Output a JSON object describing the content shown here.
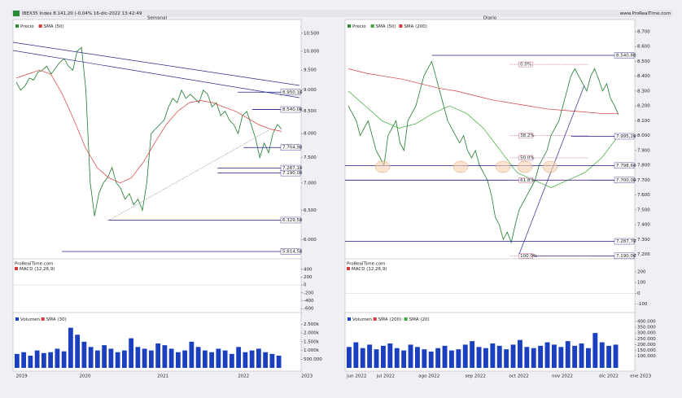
{
  "header": {
    "title": "IBEX35 Index 8.141,20 (-0,04% 16-dic-2022 13:42:49",
    "site": "www.ProRealTime.com"
  },
  "panels": [
    {
      "title": "Semanal",
      "price": {
        "legend": [
          "Precio",
          "SMA (50)"
        ],
        "log": true,
        "ylim": [
          5700,
          10800
        ],
        "yticks": [
          {
            "value": 10500,
            "label": "10.500"
          },
          {
            "value": 10000,
            "label": "10.000"
          },
          {
            "value": 9500,
            "label": "9.500"
          },
          {
            "value": 9000,
            "label": "9.000"
          },
          {
            "value": 8500,
            "label": "8.500"
          },
          {
            "value": 8000,
            "label": "8.000"
          },
          {
            "value": 7500,
            "label": "7.500"
          },
          {
            "value": 7000,
            "label": "7.000"
          },
          {
            "value": 6500,
            "label": "6.500"
          },
          {
            "value": 6000,
            "label": "6.000"
          }
        ],
        "close": [
          9200,
          9000,
          9100,
          9300,
          9250,
          9450,
          9500,
          9600,
          9400,
          9550,
          9700,
          9800,
          9600,
          9500,
          10000,
          10100,
          9000,
          7000,
          6400,
          6800,
          7000,
          7100,
          7300,
          7000,
          6900,
          6700,
          6800,
          6600,
          6700,
          6500,
          7000,
          8000,
          8100,
          8200,
          8300,
          8600,
          8800,
          8700,
          9000,
          8800,
          8900,
          8800,
          8700,
          9000,
          8900,
          8600,
          8700,
          8400,
          8500,
          8300,
          8200,
          8000,
          8400,
          8500,
          8200,
          7900,
          7500,
          7800,
          7600,
          8000,
          8200,
          8100
        ],
        "sma": [
          {
            "name": "SMA (50)",
            "color": "#d63a3a",
            "values": [
              9300,
              9400,
              9500,
              9400,
              8900,
              8300,
              7700,
              7300,
              7100,
              7000,
              7100,
              7400,
              7800,
              8200,
              8500,
              8700,
              8750,
              8700,
              8600,
              8500,
              8350,
              8200,
              8100,
              8050
            ]
          }
        ],
        "levels": [
          {
            "value": 8950.1,
            "label": "8.950,10"
          },
          {
            "value": 8540,
            "label": "8.540,00"
          },
          {
            "value": 7704.9,
            "label": "7.704,90"
          },
          {
            "value": 7287.1,
            "label": "7.287,10"
          },
          {
            "value": 7190,
            "label": "7.190,00"
          },
          {
            "value": 6329.5,
            "label": "6.329,50"
          },
          {
            "value": 5814.5,
            "label": "5.814,50"
          }
        ]
      },
      "macd": {
        "legend": [
          "ProRealTime.com",
          "MACD (12,26,9)"
        ],
        "ylim": [
          -700,
          500
        ],
        "yticks": [
          400,
          200,
          0,
          -200,
          -400,
          -600
        ]
      },
      "volume": {
        "legend": [
          "Volumen",
          "SMA (30)"
        ],
        "ylim": [
          0,
          2800000
        ],
        "yticks": [
          {
            "value": 2500000,
            "label": "2.500k"
          },
          {
            "value": 2000000,
            "label": "2.000k"
          },
          {
            "value": 1500000,
            "label": "1.500k"
          },
          {
            "value": 1000000,
            "label": "1.000k"
          },
          {
            "value": 500000,
            "label": "500.000"
          }
        ],
        "values": [
          800000,
          900000,
          700000,
          1000000,
          850000,
          900000,
          1100000,
          950000,
          2300000,
          1900000,
          1500000,
          1200000,
          1000000,
          1300000,
          1100000,
          900000,
          1000000,
          1700000,
          1200000,
          1100000,
          1000000,
          1400000,
          1300000,
          1100000,
          900000,
          1000000,
          1500000,
          1200000,
          1000000,
          900000,
          1100000,
          1000000,
          800000,
          1200000,
          900000,
          1000000,
          1100000,
          900000,
          800000,
          700000
        ]
      },
      "dates": [
        "2019",
        "2020",
        "2021",
        "2022",
        "2023"
      ]
    },
    {
      "title": "Diario",
      "price": {
        "legend": [
          "Precio",
          "SMA (50)",
          "SMA (200)"
        ],
        "log": false,
        "ylim": [
          7170,
          8760
        ],
        "yticks": [
          {
            "value": 8700,
            "label": "8.700"
          },
          {
            "value": 8600,
            "label": "8.600"
          },
          {
            "value": 8500,
            "label": "8.500"
          },
          {
            "value": 8400,
            "label": "8.400"
          },
          {
            "value": 8300,
            "label": "8.300"
          },
          {
            "value": 8200,
            "label": "8.200"
          },
          {
            "value": 8100,
            "label": "8.100"
          },
          {
            "value": 8000,
            "label": "8.000"
          },
          {
            "value": 7900,
            "label": "7.900"
          },
          {
            "value": 7800,
            "label": "7.800"
          },
          {
            "value": 7700,
            "label": "7.700"
          },
          {
            "value": 7600,
            "label": "7.600"
          },
          {
            "value": 7500,
            "label": "7.500"
          },
          {
            "value": 7400,
            "label": "7.400"
          },
          {
            "value": 7300,
            "label": "7.300"
          },
          {
            "value": 7200,
            "label": "7.200"
          }
        ],
        "close": [
          8200,
          8150,
          8100,
          8000,
          8050,
          8100,
          8000,
          7900,
          7850,
          7800,
          8000,
          8050,
          8100,
          7950,
          7900,
          8100,
          8150,
          8200,
          8300,
          8400,
          8450,
          8500,
          8400,
          8300,
          8200,
          8100,
          8050,
          8000,
          7950,
          8000,
          7900,
          7850,
          7900,
          7800,
          7750,
          7700,
          7600,
          7450,
          7400,
          7300,
          7350,
          7280,
          7400,
          7500,
          7550,
          7600,
          7650,
          7700,
          7800,
          7850,
          7900,
          8000,
          8050,
          8100,
          8200,
          8300,
          8400,
          8450,
          8400,
          8350,
          8300,
          8400,
          8450,
          8380,
          8300,
          8350,
          8250,
          8200,
          8140
        ],
        "sma": [
          {
            "name": "SMA (50)",
            "color": "#3aa83a",
            "values": [
              8300,
              8200,
              8100,
              8050,
              8080,
              8150,
              8200,
              8150,
              8050,
              7900,
              7750,
              7700,
              7650,
              7700,
              7750,
              7850,
              8000
            ]
          },
          {
            "name": "SMA (200)",
            "color": "#d63a3a",
            "values": [
              8450,
              8420,
              8400,
              8380,
              8350,
              8320,
              8300,
              8270,
              8240,
              8220,
              8200,
              8180,
              8170,
              8160,
              8150,
              8150
            ]
          }
        ],
        "levels": [
          {
            "value": 8540.8,
            "label": "8.540,80"
          },
          {
            "value": 7995.2,
            "label": "7.995,20"
          },
          {
            "value": 7798.6,
            "label": "7.798,60"
          },
          {
            "value": 7700,
            "label": "7.700,00"
          },
          {
            "value": 7287.7,
            "label": "7.287,70"
          },
          {
            "value": 7190,
            "label": "7.190,00"
          }
        ],
        "fib": [
          {
            "value": 8480,
            "label": "0.0%"
          },
          {
            "value": 8000,
            "label": "38.2%"
          },
          {
            "value": 7850,
            "label": "50.0%"
          },
          {
            "value": 7700,
            "label": "61.8%"
          },
          {
            "value": 7190,
            "label": "100.0%"
          }
        ]
      },
      "macd": {
        "legend": [
          "ProRealTime.com",
          "MACD (12,26,9)"
        ],
        "ylim": [
          -180,
          260
        ],
        "yticks": [
          200,
          100,
          0,
          -100
        ]
      },
      "volume": {
        "legend": [
          "Volumen",
          "SMA (200)",
          "SMA (20)"
        ],
        "ylim": [
          0,
          420000
        ],
        "yticks": [
          {
            "value": 400000,
            "label": "400.000"
          },
          {
            "value": 350000,
            "label": "350.000"
          },
          {
            "value": 300000,
            "label": "300.000"
          },
          {
            "value": 250000,
            "label": "250.000"
          },
          {
            "value": 200000,
            "label": "200.000"
          },
          {
            "value": 150000,
            "label": "150.000"
          },
          {
            "value": 100000,
            "label": "100.000"
          }
        ],
        "values": [
          180000,
          220000,
          170000,
          200000,
          160000,
          190000,
          210000,
          170000,
          150000,
          200000,
          180000,
          160000,
          140000,
          170000,
          190000,
          150000,
          160000,
          200000,
          230000,
          180000,
          170000,
          210000,
          190000,
          160000,
          200000,
          240000,
          180000,
          170000,
          190000,
          220000,
          200000,
          180000,
          230000,
          190000,
          210000,
          170000,
          300000,
          220000,
          190000,
          200000
        ]
      },
      "dates": [
        "jun 2022",
        "jul 2022",
        "ago 2022",
        "sep 2022",
        "oct 2022",
        "nov 2022",
        "dic 2022",
        "ene 2023"
      ]
    }
  ]
}
